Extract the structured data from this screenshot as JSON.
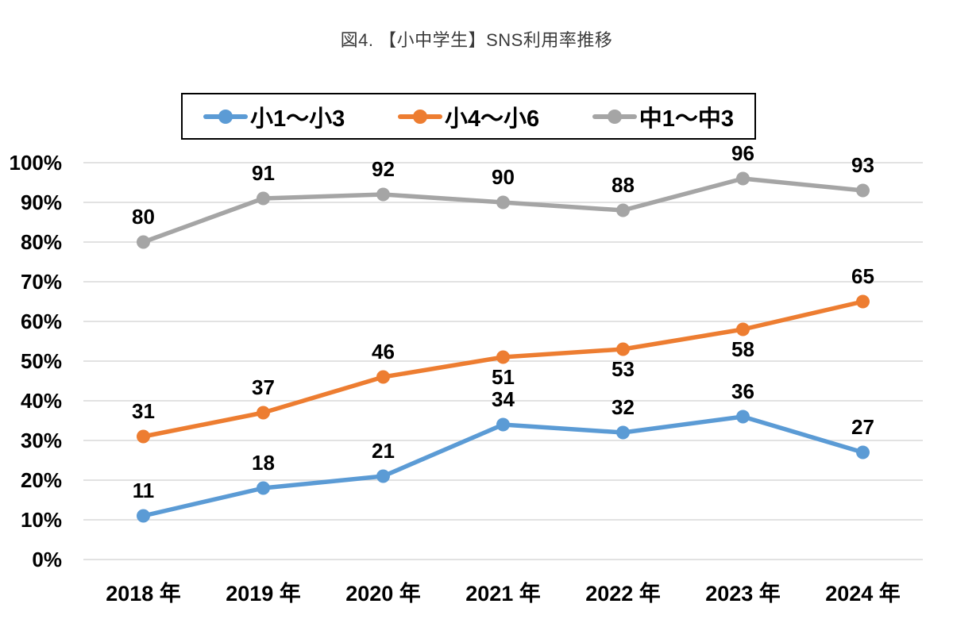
{
  "title": "図4. 【小中学生】SNS利用率推移",
  "colors": {
    "blue": "#5B9BD5",
    "orange": "#ED7D31",
    "gray": "#A5A5A5",
    "gridline": "#D9D9D9",
    "axis_text": "#000000",
    "title_text": "#3B3B3B",
    "legend_border": "#000000",
    "background": "#FFFFFF"
  },
  "legend": {
    "items": [
      {
        "label": "小1〜小3",
        "color": "#5B9BD5",
        "icon": "line-circle-marker-icon"
      },
      {
        "label": "小4〜小6",
        "color": "#ED7D31",
        "icon": "line-circle-marker-icon"
      },
      {
        "label": "中1〜中3",
        "color": "#A5A5A5",
        "icon": "line-circle-marker-icon"
      }
    ]
  },
  "chart_data": {
    "type": "line",
    "title": "図4. 【小中学生】SNS利用率推移",
    "categories": [
      "2018 年",
      "2019 年",
      "2020 年",
      "2021 年",
      "2022 年",
      "2023 年",
      "2024 年"
    ],
    "y_ticks": [
      "0%",
      "10%",
      "20%",
      "30%",
      "40%",
      "50%",
      "60%",
      "70%",
      "80%",
      "90%",
      "100%"
    ],
    "ylim": [
      0,
      100
    ],
    "grid": true,
    "legend_position": "top",
    "xlabel": "",
    "ylabel": "",
    "series": [
      {
        "name": "小1〜小3",
        "color": "#5B9BD5",
        "values": [
          11,
          18,
          21,
          34,
          32,
          36,
          27
        ],
        "label_placement": [
          "above",
          "above",
          "above",
          "above",
          "above",
          "above",
          "above"
        ]
      },
      {
        "name": "小4〜小6",
        "color": "#ED7D31",
        "values": [
          31,
          37,
          46,
          51,
          53,
          58,
          65
        ],
        "label_placement": [
          "above",
          "above",
          "above",
          "below",
          "below",
          "below",
          "above"
        ]
      },
      {
        "name": "中1〜中3",
        "color": "#A5A5A5",
        "values": [
          80,
          91,
          92,
          90,
          88,
          96,
          93
        ],
        "label_placement": [
          "above",
          "above",
          "above",
          "above",
          "above",
          "above",
          "above"
        ]
      }
    ]
  }
}
